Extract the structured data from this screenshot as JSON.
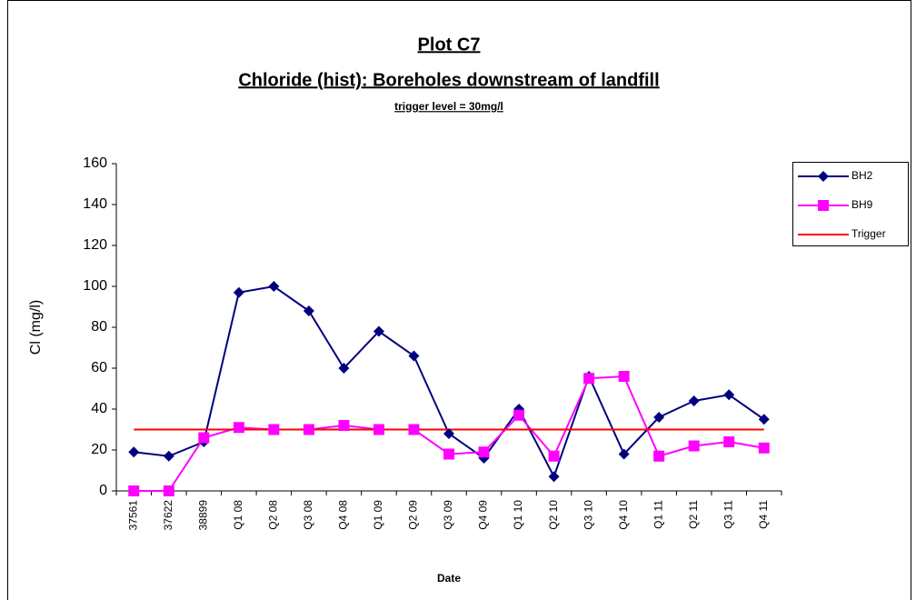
{
  "chart_data": {
    "type": "line",
    "title": "Plot C7",
    "subtitle": "Chloride (hist): Boreholes downstream of landfill",
    "annotation": "trigger level = 30mg/l",
    "x_label": "Date",
    "y_label": "Cl (mg/l)",
    "categories": [
      "37561",
      "37622",
      "38899",
      "Q1 08",
      "Q2 08",
      "Q3 08",
      "Q4 08",
      "Q1 09",
      "Q2 09",
      "Q3 09",
      "Q4 09",
      "Q1 10",
      "Q2 10",
      "Q3 10",
      "Q4 10",
      "Q1 11",
      "Q2 11",
      "Q3 11",
      "Q4 11"
    ],
    "series": [
      {
        "name": "BH2",
        "color": "#000080",
        "marker": "diamond",
        "values": [
          19,
          17,
          24,
          97,
          100,
          88,
          60,
          78,
          66,
          28,
          16,
          40,
          7,
          56,
          18,
          36,
          44,
          47,
          35
        ]
      },
      {
        "name": "BH9",
        "color": "#FF00FF",
        "marker": "square",
        "values": [
          0,
          0,
          26,
          31,
          30,
          30,
          32,
          30,
          30,
          18,
          19,
          37,
          17,
          55,
          56,
          17,
          22,
          24,
          21
        ]
      },
      {
        "name": "Trigger",
        "color": "#FF0000",
        "values": [
          30,
          30,
          30,
          30,
          30,
          30,
          30,
          30,
          30,
          30,
          30,
          30,
          30,
          30,
          30,
          30,
          30,
          30,
          30
        ]
      }
    ],
    "ylim": [
      0,
      160
    ],
    "yticks": [
      0,
      20,
      40,
      60,
      80,
      100,
      120,
      140,
      160
    ],
    "legend": "right"
  }
}
